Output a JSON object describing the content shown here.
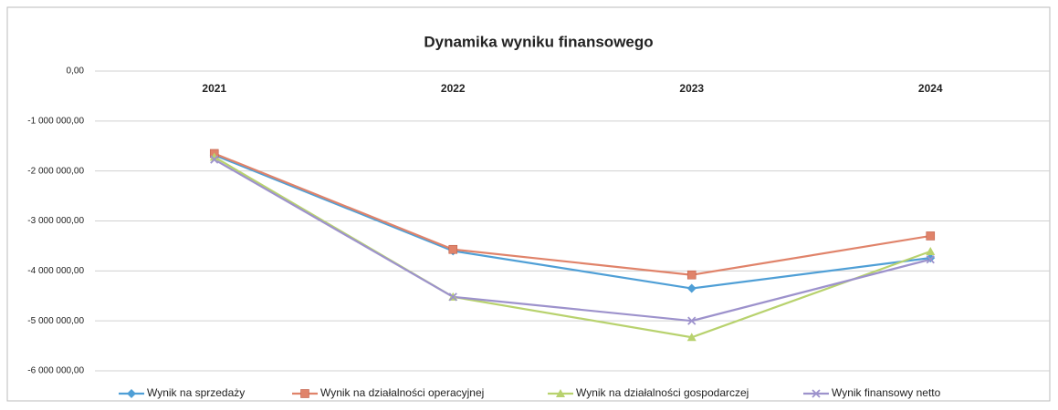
{
  "chart_data": {
    "type": "line",
    "title": "Dynamika wyniku finansowego",
    "categories": [
      "2021",
      "2022",
      "2023",
      "2024"
    ],
    "series": [
      {
        "name": "Wynik na sprzedaży",
        "color": "#4f9fd6",
        "marker": "diamond",
        "values": [
          -1680000,
          -3600000,
          -4350000,
          -3740000
        ]
      },
      {
        "name": "Wynik na działalności operacyjnej",
        "color": "#e0836a",
        "marker": "square",
        "values": [
          -1650000,
          -3570000,
          -4080000,
          -3300000
        ]
      },
      {
        "name": "Wynik na działalności gospodarczej",
        "color": "#b8d26e",
        "marker": "triangle",
        "values": [
          -1720000,
          -4520000,
          -5330000,
          -3610000
        ]
      },
      {
        "name": "Wynik finansowy netto",
        "color": "#9d92cc",
        "marker": "x",
        "values": [
          -1770000,
          -4520000,
          -5000000,
          -3770000
        ]
      }
    ],
    "ylim": [
      -6000000,
      0
    ],
    "yticks": [
      {
        "value": -6000000,
        "label": "-6 000 000,00"
      },
      {
        "value": -5000000,
        "label": "-5 000 000,00"
      },
      {
        "value": -4000000,
        "label": "-4 000 000,00"
      },
      {
        "value": -3000000,
        "label": "-3 000 000,00"
      },
      {
        "value": -2000000,
        "label": "-2 000 000,00"
      },
      {
        "value": -1000000,
        "label": "-1 000 000,00"
      },
      {
        "value": 0,
        "label": "0,00"
      }
    ],
    "grid": true,
    "legend": "bottom"
  }
}
